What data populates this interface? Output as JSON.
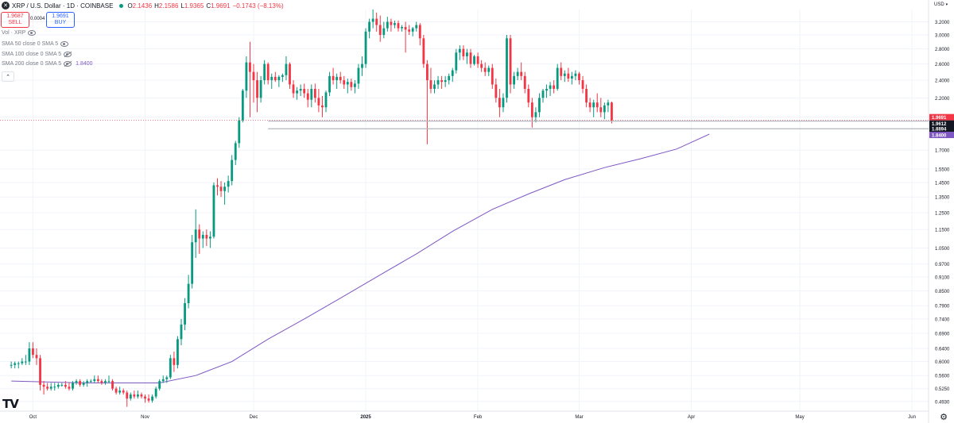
{
  "header": {
    "symbol_icon": "x-icon",
    "title": "XRP / U.S. Dollar · 1D · COINBASE",
    "open_label": "O",
    "open_value": "2.1436",
    "high_label": "H",
    "high_value": "2.1586",
    "low_label": "L",
    "low_value": "1.9365",
    "close_label": "C",
    "close_value": "1.9691",
    "change": "−0.1743 (−8.13%)"
  },
  "trade": {
    "sell_price": "1.9687",
    "sell_label": "SELL",
    "spread": "0.0004",
    "buy_price": "1.9691",
    "buy_label": "BUY"
  },
  "indicators": [
    {
      "label": "Vol · XRP",
      "value": ""
    },
    {
      "label": "SMA 50 close 0 SMA 5",
      "value": ""
    },
    {
      "label": "SMA 100 close 0 SMA 5",
      "value": ""
    },
    {
      "label": "SMA 200 close 0 SMA 5",
      "value": "1.8400"
    }
  ],
  "currency": "USD",
  "colors": {
    "up": "#089981",
    "down": "#f23645",
    "sma200": "#7e57c2",
    "support": "#b2b5be",
    "grid": "#f0f3fa"
  },
  "chart_data": {
    "type": "candlestick",
    "scale": "log",
    "ylim": [
      0.47,
      3.4
    ],
    "y_ticks": [
      "3.2000",
      "3.0000",
      "2.8000",
      "2.6000",
      "2.4000",
      "2.2000",
      "2.0000",
      "1.7000",
      "1.5500",
      "1.4500",
      "1.3500",
      "1.2500",
      "1.1500",
      "1.0500",
      "0.9700",
      "0.9100",
      "0.8500",
      "0.7900",
      "0.7400",
      "0.6900",
      "0.6400",
      "0.6000",
      "0.5600",
      "0.5250",
      "0.4930"
    ],
    "x_ticks": [
      "Oct",
      "Nov",
      "Dec",
      "2025",
      "Feb",
      "Mar",
      "Apr",
      "May",
      "Jun"
    ],
    "price_labels": [
      {
        "value": "1.9691",
        "kind": "last"
      },
      {
        "value": "1.9612",
        "kind": "level"
      },
      {
        "value": "1.8894",
        "kind": "level"
      },
      {
        "value": "1.8400",
        "kind": "sma200"
      }
    ],
    "horizontal_levels": [
      1.9612,
      1.8894
    ],
    "candles_start": "2024-09-25",
    "candles": [
      [
        0.59,
        0.6,
        0.58,
        0.59
      ],
      [
        0.59,
        0.6,
        0.58,
        0.595
      ],
      [
        0.595,
        0.6,
        0.58,
        0.595
      ],
      [
        0.595,
        0.61,
        0.59,
        0.6
      ],
      [
        0.6,
        0.62,
        0.59,
        0.6
      ],
      [
        0.6,
        0.66,
        0.59,
        0.64
      ],
      [
        0.64,
        0.66,
        0.61,
        0.62
      ],
      [
        0.62,
        0.64,
        0.59,
        0.61
      ],
      [
        0.61,
        0.62,
        0.52,
        0.535
      ],
      [
        0.535,
        0.545,
        0.51,
        0.53
      ],
      [
        0.53,
        0.54,
        0.52,
        0.525
      ],
      [
        0.525,
        0.54,
        0.52,
        0.53
      ],
      [
        0.53,
        0.54,
        0.52,
        0.53
      ],
      [
        0.53,
        0.54,
        0.525,
        0.535
      ],
      [
        0.535,
        0.54,
        0.53,
        0.535
      ],
      [
        0.535,
        0.545,
        0.525,
        0.53
      ],
      [
        0.53,
        0.54,
        0.52,
        0.525
      ],
      [
        0.525,
        0.545,
        0.52,
        0.54
      ],
      [
        0.54,
        0.55,
        0.535,
        0.545
      ],
      [
        0.545,
        0.55,
        0.53,
        0.535
      ],
      [
        0.535,
        0.545,
        0.53,
        0.54
      ],
      [
        0.54,
        0.55,
        0.53,
        0.545
      ],
      [
        0.545,
        0.55,
        0.54,
        0.545
      ],
      [
        0.545,
        0.56,
        0.54,
        0.55
      ],
      [
        0.55,
        0.56,
        0.54,
        0.545
      ],
      [
        0.545,
        0.55,
        0.535,
        0.54
      ],
      [
        0.54,
        0.55,
        0.535,
        0.545
      ],
      [
        0.545,
        0.56,
        0.54,
        0.545
      ],
      [
        0.545,
        0.55,
        0.52,
        0.525
      ],
      [
        0.525,
        0.53,
        0.51,
        0.515
      ],
      [
        0.515,
        0.53,
        0.51,
        0.52
      ],
      [
        0.52,
        0.525,
        0.51,
        0.515
      ],
      [
        0.515,
        0.52,
        0.48,
        0.5
      ],
      [
        0.5,
        0.515,
        0.495,
        0.51
      ],
      [
        0.51,
        0.52,
        0.5,
        0.505
      ],
      [
        0.505,
        0.52,
        0.5,
        0.51
      ],
      [
        0.51,
        0.515,
        0.5,
        0.505
      ],
      [
        0.505,
        0.51,
        0.49,
        0.5
      ],
      [
        0.5,
        0.51,
        0.49,
        0.495
      ],
      [
        0.495,
        0.51,
        0.49,
        0.505
      ],
      [
        0.505,
        0.53,
        0.5,
        0.525
      ],
      [
        0.525,
        0.55,
        0.52,
        0.545
      ],
      [
        0.545,
        0.56,
        0.54,
        0.55
      ],
      [
        0.55,
        0.56,
        0.54,
        0.555
      ],
      [
        0.555,
        0.62,
        0.55,
        0.61
      ],
      [
        0.61,
        0.63,
        0.57,
        0.59
      ],
      [
        0.59,
        0.68,
        0.58,
        0.67
      ],
      [
        0.67,
        0.74,
        0.65,
        0.72
      ],
      [
        0.72,
        0.82,
        0.7,
        0.8
      ],
      [
        0.8,
        0.92,
        0.78,
        0.88
      ],
      [
        0.88,
        1.12,
        0.86,
        1.08
      ],
      [
        1.08,
        1.27,
        1.0,
        1.15
      ],
      [
        1.15,
        1.18,
        1.02,
        1.1
      ],
      [
        1.1,
        1.14,
        1.05,
        1.12
      ],
      [
        1.12,
        1.15,
        1.06,
        1.1
      ],
      [
        1.1,
        1.14,
        1.05,
        1.11
      ],
      [
        1.11,
        1.45,
        1.1,
        1.43
      ],
      [
        1.43,
        1.48,
        1.36,
        1.42
      ],
      [
        1.42,
        1.46,
        1.35,
        1.39
      ],
      [
        1.39,
        1.45,
        1.3,
        1.42
      ],
      [
        1.42,
        1.5,
        1.38,
        1.46
      ],
      [
        1.46,
        1.66,
        1.43,
        1.62
      ],
      [
        1.62,
        1.78,
        1.58,
        1.76
      ],
      [
        1.76,
        2.0,
        1.72,
        1.97
      ],
      [
        1.97,
        2.3,
        1.95,
        2.28
      ],
      [
        2.28,
        2.7,
        2.2,
        2.62
      ],
      [
        2.62,
        2.9,
        2.0,
        2.5
      ],
      [
        2.5,
        2.6,
        2.15,
        2.4
      ],
      [
        2.4,
        2.5,
        2.05,
        2.2
      ],
      [
        2.2,
        2.45,
        2.15,
        2.4
      ],
      [
        2.4,
        2.65,
        2.35,
        2.6
      ],
      [
        2.6,
        2.62,
        2.35,
        2.4
      ],
      [
        2.4,
        2.48,
        2.3,
        2.44
      ],
      [
        2.44,
        2.5,
        2.38,
        2.4
      ],
      [
        2.4,
        2.46,
        2.32,
        2.44
      ],
      [
        2.44,
        2.48,
        2.38,
        2.46
      ],
      [
        2.46,
        2.7,
        2.4,
        2.6
      ],
      [
        2.6,
        2.62,
        2.3,
        2.35
      ],
      [
        2.35,
        2.4,
        2.2,
        2.25
      ],
      [
        2.25,
        2.32,
        2.18,
        2.28
      ],
      [
        2.28,
        2.35,
        2.22,
        2.3
      ],
      [
        2.3,
        2.36,
        2.2,
        2.25
      ],
      [
        2.25,
        2.3,
        2.1,
        2.18
      ],
      [
        2.18,
        2.35,
        2.1,
        2.3
      ],
      [
        2.3,
        2.36,
        2.15,
        2.2
      ],
      [
        2.2,
        2.3,
        2.05,
        2.12
      ],
      [
        2.12,
        2.22,
        2.0,
        2.1
      ],
      [
        2.1,
        2.28,
        2.05,
        2.26
      ],
      [
        2.26,
        2.5,
        2.22,
        2.45
      ],
      [
        2.45,
        2.55,
        2.35,
        2.4
      ],
      [
        2.4,
        2.48,
        2.3,
        2.44
      ],
      [
        2.44,
        2.5,
        2.36,
        2.4
      ],
      [
        2.4,
        2.45,
        2.3,
        2.35
      ],
      [
        2.35,
        2.42,
        2.25,
        2.38
      ],
      [
        2.38,
        2.42,
        2.28,
        2.32
      ],
      [
        2.32,
        2.4,
        2.25,
        2.36
      ],
      [
        2.36,
        2.6,
        2.3,
        2.55
      ],
      [
        2.55,
        2.7,
        2.45,
        2.6
      ],
      [
        2.6,
        3.1,
        2.55,
        3.05
      ],
      [
        3.05,
        3.25,
        2.95,
        3.2
      ],
      [
        3.2,
        3.4,
        3.1,
        3.25
      ],
      [
        3.25,
        3.35,
        3.05,
        3.15
      ],
      [
        3.15,
        3.3,
        2.9,
        3.0
      ],
      [
        3.0,
        3.2,
        2.95,
        3.1
      ],
      [
        3.1,
        3.28,
        3.05,
        3.2
      ],
      [
        3.2,
        3.25,
        3.05,
        3.15
      ],
      [
        3.15,
        3.22,
        3.1,
        3.18
      ],
      [
        3.18,
        3.22,
        3.05,
        3.1
      ],
      [
        3.1,
        3.15,
        3.05,
        3.12
      ],
      [
        3.12,
        3.2,
        2.75,
        3.08
      ],
      [
        3.08,
        3.15,
        3.0,
        3.05
      ],
      [
        3.05,
        3.12,
        2.98,
        3.1
      ],
      [
        3.1,
        3.2,
        3.05,
        3.15
      ],
      [
        3.15,
        3.18,
        2.85,
        2.95
      ],
      [
        2.95,
        3.0,
        2.55,
        2.6
      ],
      [
        2.6,
        2.65,
        1.75,
        2.4
      ],
      [
        2.4,
        2.55,
        2.25,
        2.3
      ],
      [
        2.3,
        2.4,
        2.25,
        2.35
      ],
      [
        2.35,
        2.45,
        2.3,
        2.4
      ],
      [
        2.4,
        2.45,
        2.3,
        2.38
      ],
      [
        2.38,
        2.45,
        2.32,
        2.4
      ],
      [
        2.4,
        2.48,
        2.35,
        2.45
      ],
      [
        2.45,
        2.55,
        2.38,
        2.52
      ],
      [
        2.52,
        2.8,
        2.48,
        2.75
      ],
      [
        2.75,
        2.85,
        2.65,
        2.8
      ],
      [
        2.8,
        2.85,
        2.65,
        2.7
      ],
      [
        2.7,
        2.8,
        2.6,
        2.75
      ],
      [
        2.75,
        2.8,
        2.55,
        2.6
      ],
      [
        2.6,
        2.72,
        2.58,
        2.7
      ],
      [
        2.7,
        2.75,
        2.55,
        2.6
      ],
      [
        2.6,
        2.65,
        2.5,
        2.55
      ],
      [
        2.55,
        2.62,
        2.45,
        2.5
      ],
      [
        2.5,
        2.58,
        2.45,
        2.55
      ],
      [
        2.55,
        2.6,
        2.3,
        2.35
      ],
      [
        2.35,
        2.42,
        2.15,
        2.2
      ],
      [
        2.2,
        2.3,
        2.0,
        2.1
      ],
      [
        2.1,
        2.25,
        2.05,
        2.2
      ],
      [
        2.2,
        3.0,
        2.15,
        2.95
      ],
      [
        2.95,
        3.0,
        2.25,
        2.35
      ],
      [
        2.35,
        2.5,
        2.3,
        2.45
      ],
      [
        2.45,
        2.55,
        2.4,
        2.5
      ],
      [
        2.5,
        2.62,
        2.4,
        2.45
      ],
      [
        2.45,
        2.5,
        2.25,
        2.3
      ],
      [
        2.3,
        2.35,
        2.1,
        2.15
      ],
      [
        2.15,
        2.2,
        1.9,
        2.0
      ],
      [
        2.0,
        2.1,
        1.95,
        2.05
      ],
      [
        2.05,
        2.25,
        2.0,
        2.2
      ],
      [
        2.2,
        2.3,
        2.15,
        2.28
      ],
      [
        2.28,
        2.35,
        2.2,
        2.3
      ],
      [
        2.3,
        2.38,
        2.22,
        2.34
      ],
      [
        2.34,
        2.4,
        2.25,
        2.3
      ],
      [
        2.3,
        2.6,
        2.28,
        2.55
      ],
      [
        2.55,
        2.62,
        2.4,
        2.45
      ],
      [
        2.45,
        2.52,
        2.38,
        2.48
      ],
      [
        2.48,
        2.55,
        2.38,
        2.42
      ],
      [
        2.42,
        2.5,
        2.35,
        2.45
      ],
      [
        2.45,
        2.52,
        2.4,
        2.48
      ],
      [
        2.48,
        2.5,
        2.35,
        2.4
      ],
      [
        2.4,
        2.45,
        2.25,
        2.3
      ],
      [
        2.3,
        2.35,
        2.1,
        2.15
      ],
      [
        2.15,
        2.2,
        2.05,
        2.1
      ],
      [
        2.1,
        2.18,
        2.0,
        2.15
      ],
      [
        2.15,
        2.25,
        2.05,
        2.1
      ],
      [
        2.1,
        2.2,
        2.0,
        2.05
      ],
      [
        2.05,
        2.15,
        1.98,
        2.12
      ],
      [
        2.12,
        2.18,
        2.05,
        2.15
      ],
      [
        2.15,
        2.16,
        1.94,
        1.97
      ]
    ],
    "sma200": [
      [
        "2024-09-25",
        0.545
      ],
      [
        "2024-10-15",
        0.54
      ],
      [
        "2024-11-05",
        0.54
      ],
      [
        "2024-11-15",
        0.56
      ],
      [
        "2024-11-25",
        0.6
      ],
      [
        "2024-12-05",
        0.67
      ],
      [
        "2024-12-15",
        0.74
      ],
      [
        "2024-12-25",
        0.82
      ],
      [
        "2025-01-05",
        0.92
      ],
      [
        "2025-01-15",
        1.02
      ],
      [
        "2025-01-25",
        1.14
      ],
      [
        "2025-02-05",
        1.27
      ],
      [
        "2025-02-15",
        1.37
      ],
      [
        "2025-02-25",
        1.47
      ],
      [
        "2025-03-08",
        1.56
      ],
      [
        "2025-03-18",
        1.63
      ],
      [
        "2025-03-28",
        1.71
      ],
      [
        "2025-04-06",
        1.84
      ]
    ]
  }
}
